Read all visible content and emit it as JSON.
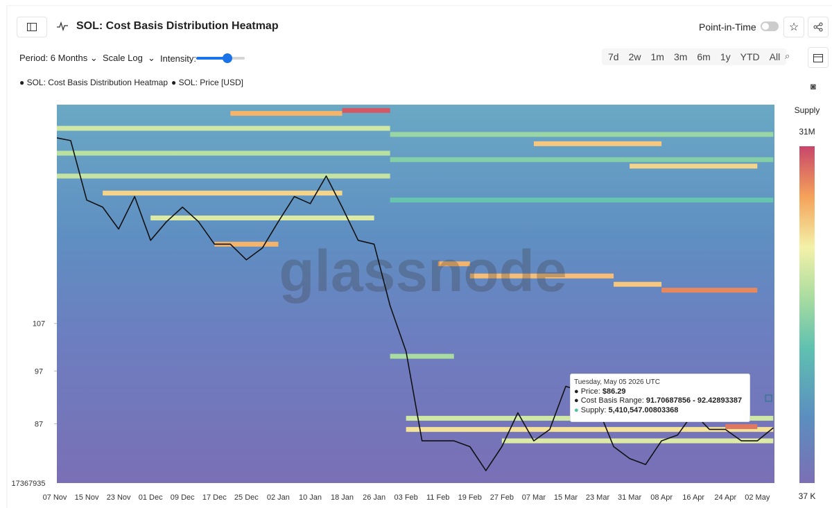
{
  "header": {
    "title": "SOL: Cost Basis Distribution Heatmap",
    "point_in_time": "Point-in-Time"
  },
  "toolbar": {
    "period": "Period: 6 Months",
    "scale": "Scale Log",
    "intensity": "Intensity:",
    "ranges": [
      "7d",
      "2w",
      "1m",
      "3m",
      "6m",
      "1y",
      "YTD",
      "All"
    ]
  },
  "watermark": "glassnode",
  "chart_data": {
    "type": "heatmap",
    "legend": [
      "SOL: Cost Basis Distribution Heatmap",
      "SOL: Price [USD]"
    ],
    "categories": [
      "07 Nov",
      null,
      "15 Nov",
      null,
      "23 Nov",
      null,
      "01 Dec",
      null,
      "09 Dec",
      null,
      "17 Dec",
      null,
      "25 Dec",
      null,
      "02 Jan",
      null,
      "10 Jan",
      null,
      "18 Jan",
      null,
      "26 Jan",
      null,
      "03 Feb",
      null,
      "11 Feb",
      null,
      "19 Feb",
      null,
      "27 Feb",
      null,
      "07 Mar",
      null,
      "15 Mar",
      null,
      "23 Mar",
      null,
      "31 Mar",
      null,
      "08 Apr",
      null,
      "16 Apr",
      null,
      "24 Apr",
      null,
      "02 May",
      null
    ],
    "log_scale": true,
    "ylim": [
      77,
      168
    ],
    "yticks": [
      87,
      97,
      107
    ],
    "y_bottom_label": "17367935",
    "series": [
      {
        "name": "SOL: Price [USD]",
        "color": "#111111",
        "values": [
          157,
          156,
          138,
          136,
          130,
          139,
          127,
          132,
          136,
          132,
          126,
          126,
          122,
          125,
          132,
          139,
          137,
          145,
          136,
          127,
          126,
          111,
          101,
          84,
          84,
          84,
          83,
          79,
          83,
          89,
          84,
          86,
          94,
          93,
          90,
          83,
          81,
          80,
          84,
          85,
          89,
          86,
          86,
          84,
          84,
          86.29
        ]
      }
    ],
    "bands": [
      {
        "price": 160,
        "start": 0,
        "end": 21,
        "supply": 2500000
      },
      {
        "price": 152,
        "start": 0,
        "end": 21,
        "supply": 1800000
      },
      {
        "price": 145,
        "start": 0,
        "end": 21,
        "supply": 2200000
      },
      {
        "price": 140,
        "start": 3,
        "end": 18,
        "supply": 6000000
      },
      {
        "price": 133,
        "start": 6,
        "end": 20,
        "supply": 3000000
      },
      {
        "price": 126,
        "start": 10,
        "end": 14,
        "supply": 9000000
      },
      {
        "price": 165,
        "start": 11,
        "end": 18,
        "supply": 9000000
      },
      {
        "price": 166,
        "start": 18,
        "end": 21,
        "supply": 25000000
      },
      {
        "price": 158,
        "start": 21,
        "end": 45,
        "supply": 1200000
      },
      {
        "price": 150,
        "start": 21,
        "end": 45,
        "supply": 900000
      },
      {
        "price": 155,
        "start": 30,
        "end": 38,
        "supply": 7000000
      },
      {
        "price": 148,
        "start": 36,
        "end": 44,
        "supply": 6000000
      },
      {
        "price": 138,
        "start": 21,
        "end": 45,
        "supply": 600000
      },
      {
        "price": 121,
        "start": 24,
        "end": 26,
        "supply": 9000000
      },
      {
        "price": 118,
        "start": 26,
        "end": 35,
        "supply": 8000000
      },
      {
        "price": 116,
        "start": 35,
        "end": 38,
        "supply": 7000000
      },
      {
        "price": 114.6,
        "start": 38,
        "end": 44,
        "supply": 15000000
      },
      {
        "price": 88,
        "start": 22,
        "end": 45,
        "supply": 2500000
      },
      {
        "price": 86,
        "start": 22,
        "end": 45,
        "supply": 5000000
      },
      {
        "price": 84,
        "start": 28,
        "end": 45,
        "supply": 3000000
      },
      {
        "price": 86.5,
        "start": 42,
        "end": 44,
        "supply": 18000000
      },
      {
        "price": 100,
        "start": 21,
        "end": 25,
        "supply": 1500000
      }
    ],
    "colorbar": {
      "title": "Supply",
      "max": 31000000,
      "max_label": "31M",
      "min": 37000,
      "min_label": "37 K"
    },
    "tooltip": {
      "date": "Tuesday, May 05 2026 UTC",
      "price_label": "Price:",
      "price": "$86.29",
      "range_label": "Cost Basis Range:",
      "range": "91.70687856 - 92.42893387",
      "supply_label": "Supply:",
      "supply": "5,410,547.00803368"
    }
  }
}
